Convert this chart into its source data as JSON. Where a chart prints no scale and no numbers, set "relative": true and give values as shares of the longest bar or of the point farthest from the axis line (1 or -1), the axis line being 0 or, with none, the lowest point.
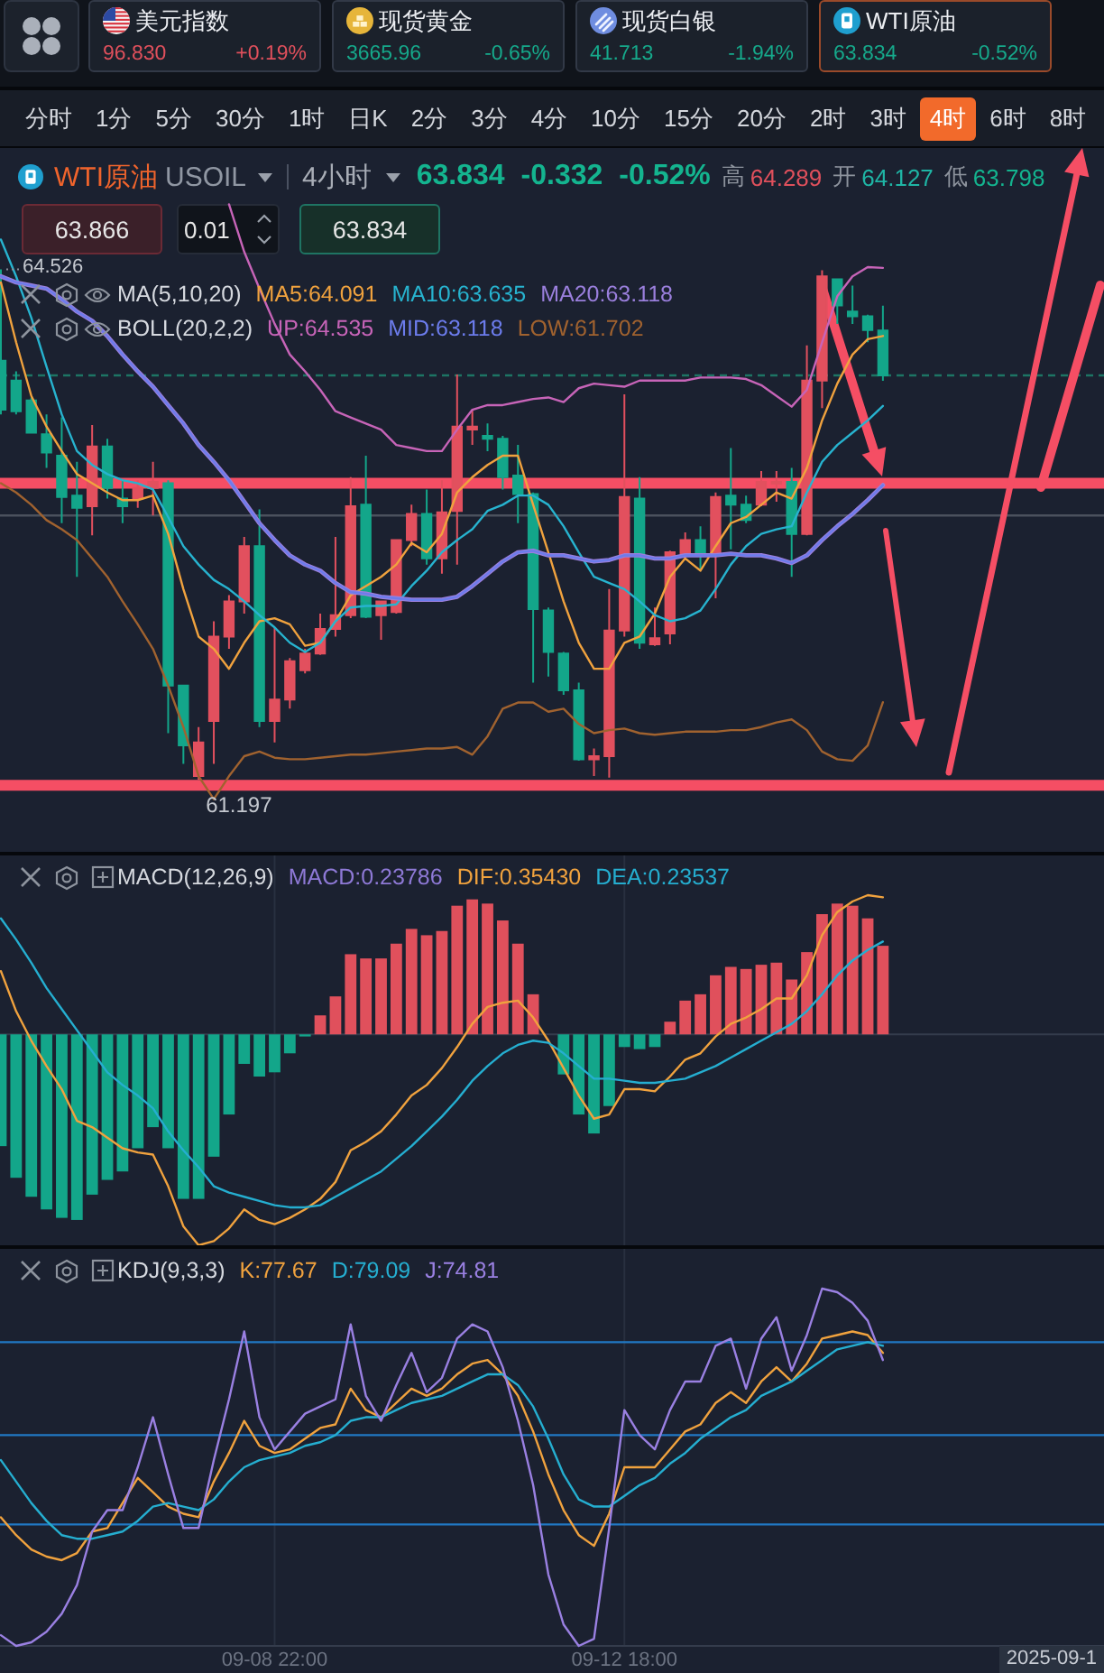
{
  "chart_data": [
    {
      "type": "other",
      "annotations": [
        "美元指数",
        "96.830",
        "+0.19%",
        "现货黄金",
        "3665.96",
        "-0.65%",
        "现货白银",
        "41.713",
        "-1.94%",
        "WTI原油",
        "63.834",
        "-0.52%"
      ]
    },
    {
      "type": "other",
      "annotations": [
        "分时",
        "1分",
        "5分",
        "30分",
        "1时",
        "日K",
        "2分",
        "3分",
        "4分",
        "10分",
        "15分",
        "20分",
        "2时",
        "3时",
        "4时",
        "6时",
        "8时"
      ]
    },
    {
      "type": "candlestick",
      "title": "WTI原油",
      "subtitle": "USOIL",
      "categories": [
        null,
        null,
        null,
        null,
        null,
        null,
        null,
        null,
        null,
        null,
        null,
        null,
        null,
        null,
        null,
        null,
        null,
        null,
        null,
        null,
        null,
        null,
        null,
        null,
        null,
        null,
        null,
        null,
        null,
        null,
        null,
        null,
        null,
        null,
        null,
        null,
        null,
        null,
        null,
        null,
        null,
        null,
        null,
        null,
        null,
        null,
        null,
        null,
        null,
        null,
        null,
        null,
        null,
        null,
        null,
        null,
        null,
        null,
        null
      ],
      "ohlc": [
        [
          63.93,
          64.526,
          63.58,
          63.61
        ],
        [
          63.8,
          63.86,
          63.58,
          63.6
        ],
        [
          63.67,
          63.69,
          63.46,
          63.46
        ],
        [
          63.45,
          63.58,
          63.23,
          63.33
        ],
        [
          63.31,
          63.56,
          62.87,
          63.04
        ],
        [
          63.05,
          63.27,
          62.52,
          62.97
        ],
        [
          62.98,
          63.51,
          62.79,
          63.37
        ],
        [
          63.37,
          63.42,
          63.03,
          63.1
        ],
        [
          63.03,
          63.15,
          62.87,
          62.98
        ],
        [
          63.03,
          63.15,
          62.97,
          63.1
        ],
        [
          63.1,
          63.27,
          62.92,
          63.14
        ],
        [
          63.13,
          63.15,
          61.5,
          61.81
        ],
        [
          61.81,
          61.81,
          61.3,
          61.42
        ],
        [
          61.22,
          61.54,
          61.197,
          61.44
        ],
        [
          61.58,
          62.23,
          61.3,
          62.13
        ],
        [
          62.13,
          62.4,
          62.05,
          62.36
        ],
        [
          62.36,
          62.78,
          62.28,
          62.72
        ],
        [
          62.72,
          62.96,
          61.54,
          61.58
        ],
        [
          61.58,
          62.19,
          61.44,
          61.72
        ],
        [
          61.72,
          61.99,
          61.66,
          61.97
        ],
        [
          61.91,
          62.05,
          61.89,
          62.02
        ],
        [
          62.02,
          62.28,
          62.01,
          62.18
        ],
        [
          62.18,
          62.78,
          62.13,
          62.27
        ],
        [
          62.27,
          63.17,
          62.25,
          62.98
        ],
        [
          62.99,
          63.31,
          62.25,
          62.26
        ],
        [
          62.27,
          62.36,
          62.11,
          62.36
        ],
        [
          62.29,
          62.76,
          62.28,
          62.76
        ],
        [
          62.76,
          62.99,
          62.72,
          62.93
        ],
        [
          62.93,
          63.09,
          62.6,
          62.64
        ],
        [
          62.64,
          63.15,
          62.54,
          62.94
        ],
        [
          62.95,
          63.84,
          62.6,
          63.5
        ],
        [
          63.48,
          63.61,
          63.38,
          63.5
        ],
        [
          63.44,
          63.52,
          63.34,
          63.42
        ],
        [
          63.42,
          63.44,
          63.09,
          63.17
        ],
        [
          63.18,
          63.38,
          62.87,
          63.06
        ],
        [
          63.06,
          63.07,
          61.83,
          62.31
        ],
        [
          62.3,
          62.32,
          61.87,
          62.03
        ],
        [
          62.02,
          62.03,
          61.75,
          61.78
        ],
        [
          61.78,
          61.83,
          61.32,
          61.33
        ],
        [
          61.33,
          61.4,
          61.22,
          61.35
        ],
        [
          61.35,
          62.44,
          61.21,
          62.17
        ],
        [
          62.17,
          63.71,
          62.13,
          63.04
        ],
        [
          63.03,
          63.17,
          62.05,
          62.09
        ],
        [
          62.08,
          62.32,
          62.07,
          62.12
        ],
        [
          62.15,
          62.69,
          62.08,
          62.68
        ],
        [
          62.67,
          62.81,
          62.64,
          62.76
        ],
        [
          62.76,
          62.85,
          62.56,
          62.66
        ],
        [
          62.66,
          63.07,
          62.38,
          63.04
        ],
        [
          63.05,
          63.36,
          62.7,
          62.99
        ],
        [
          62.99,
          63.05,
          62.87,
          62.89
        ],
        [
          62.99,
          63.21,
          62.98,
          63.14
        ],
        [
          63.13,
          63.21,
          63.01,
          63.14
        ],
        [
          63.14,
          63.23,
          62.52,
          62.8
        ],
        [
          62.8,
          64.03,
          62.79,
          63.8
        ],
        [
          63.8,
          64.52,
          63.62,
          64.48
        ],
        [
          64.46,
          64.46,
          64.17,
          64.29
        ],
        [
          64.25,
          64.42,
          64.17,
          64.22
        ],
        [
          64.22,
          64.23,
          64.05,
          64.13
        ],
        [
          64.127,
          64.289,
          63.798,
          63.834
        ]
      ],
      "colors": [
        "#13a68a",
        "#13a68a",
        "#13a68a",
        "#13a68a",
        "#13a68a",
        "#13a68a",
        "#e2505e",
        "#13a68a",
        "#13a68a",
        "#e2505e",
        "#e2505e",
        "#13a68a",
        "#13a68a",
        "#e2505e",
        "#e2505e",
        "#e2505e",
        "#e2505e",
        "#13a68a",
        "#e2505e",
        "#e2505e",
        "#e2505e",
        "#e2505e",
        "#e2505e",
        "#e2505e",
        "#13a68a",
        "#e2505e",
        "#e2505e",
        "#e2505e",
        "#13a68a",
        "#e2505e",
        "#e2505e",
        "#e2505e",
        "#13a68a",
        "#13a68a",
        "#13a68a",
        "#13a68a",
        "#13a68a",
        "#13a68a",
        "#13a68a",
        "#e2505e",
        "#e2505e",
        "#e2505e",
        "#13a68a",
        "#e2505e",
        "#e2505e",
        "#e2505e",
        "#13a68a",
        "#e2505e",
        "#13a68a",
        "#13a68a",
        "#e2505e",
        "#e2505e",
        "#13a68a",
        "#e2505e",
        "#e2505e",
        "#13a68a",
        "#13a68a",
        "#13a68a",
        "#13a68a"
      ],
      "series": [
        {
          "type": "line",
          "name": "MA5:64.091",
          "color": "#f0a23e",
          "values": [
            64.44,
            64.05,
            63.7,
            63.5,
            63.34,
            63.19,
            63.13,
            63.07,
            63.02,
            63.02,
            63.05,
            62.8,
            62.44,
            62.13,
            62.05,
            61.92,
            62.09,
            62.23,
            62.25,
            62.21,
            62.07,
            62.09,
            62.23,
            62.4,
            62.46,
            62.52,
            62.6,
            62.74,
            62.68,
            62.8,
            63.07,
            63.17,
            63.25,
            63.31,
            63.31,
            62.99,
            62.68,
            62.36,
            62.09,
            61.92,
            61.92,
            62.09,
            62.13,
            62.28,
            62.52,
            62.64,
            62.56,
            62.72,
            62.87,
            62.91,
            62.99,
            63.07,
            63.03,
            63.23,
            63.54,
            63.78,
            63.97,
            64.07,
            64.091
          ]
        },
        {
          "type": "line",
          "name": "MA10:63.635",
          "color": "#27b3cf",
          "values": [
            64.72,
            64.48,
            64.21,
            63.89,
            63.58,
            63.34,
            63.25,
            63.19,
            63.15,
            63.13,
            63.09,
            62.91,
            62.72,
            62.6,
            62.5,
            62.44,
            62.36,
            62.27,
            62.19,
            62.09,
            62.03,
            62.09,
            62.23,
            62.32,
            62.33,
            62.33,
            62.34,
            62.46,
            62.56,
            62.68,
            62.76,
            62.83,
            62.95,
            62.99,
            63.05,
            63.05,
            62.99,
            62.85,
            62.68,
            62.52,
            62.48,
            62.44,
            62.36,
            62.27,
            62.23,
            62.25,
            62.3,
            62.44,
            62.6,
            62.72,
            62.8,
            62.83,
            62.85,
            63.07,
            63.27,
            63.38,
            63.46,
            63.54,
            63.635
          ]
        },
        {
          "type": "line",
          "name": "MA20:63.118",
          "color": "#9a7fdc",
          "values": [
            64.48,
            64.44,
            64.42,
            64.4,
            64.33,
            64.25,
            64.19,
            64.09,
            63.97,
            63.86,
            63.76,
            63.64,
            63.52,
            63.38,
            63.27,
            63.15,
            63.01,
            62.87,
            62.76,
            62.66,
            62.6,
            62.56,
            62.48,
            62.42,
            62.41,
            62.39,
            62.38,
            62.37,
            62.37,
            62.37,
            62.39,
            62.46,
            62.54,
            62.62,
            62.68,
            62.69,
            62.66,
            62.66,
            62.64,
            62.62,
            62.63,
            62.66,
            62.66,
            62.64,
            62.64,
            62.66,
            62.66,
            62.66,
            62.67,
            62.66,
            62.66,
            62.64,
            62.61,
            62.66,
            62.76,
            62.85,
            62.93,
            63.02,
            63.118
          ]
        },
        {
          "type": "line",
          "name": "UP:64.535",
          "color": "#c764b8",
          "values": [
            null,
            null,
            null,
            null,
            null,
            null,
            null,
            null,
            null,
            null,
            null,
            null,
            null,
            null,
            null,
            64.95,
            64.64,
            64.4,
            64.17,
            63.97,
            63.86,
            63.74,
            63.6,
            63.56,
            63.52,
            63.48,
            63.38,
            63.36,
            63.34,
            63.34,
            63.48,
            63.61,
            63.64,
            63.64,
            63.66,
            63.68,
            63.69,
            63.66,
            63.75,
            63.78,
            63.77,
            63.76,
            63.8,
            63.8,
            63.8,
            63.8,
            63.82,
            63.82,
            63.82,
            63.81,
            63.77,
            63.7,
            63.63,
            63.74,
            64.05,
            64.35,
            64.48,
            64.54,
            64.535
          ]
        },
        {
          "type": "line",
          "name": "MID:63.118",
          "color": "#6c7cec",
          "values": [
            64.48,
            64.44,
            64.42,
            64.4,
            64.33,
            64.25,
            64.19,
            64.09,
            63.97,
            63.86,
            63.76,
            63.64,
            63.52,
            63.38,
            63.27,
            63.15,
            63.01,
            62.87,
            62.76,
            62.66,
            62.6,
            62.56,
            62.48,
            62.42,
            62.41,
            62.39,
            62.38,
            62.37,
            62.37,
            62.37,
            62.39,
            62.46,
            62.54,
            62.62,
            62.68,
            62.69,
            62.66,
            62.66,
            62.64,
            62.62,
            62.63,
            62.66,
            62.66,
            62.64,
            62.64,
            62.66,
            62.66,
            62.66,
            62.67,
            62.66,
            62.66,
            62.64,
            62.61,
            62.66,
            62.76,
            62.85,
            62.93,
            63.02,
            63.118
          ]
        },
        {
          "type": "line",
          "name": "LOW:61.702",
          "color": "#a0622f",
          "values": [
            63.13,
            63.07,
            62.99,
            62.89,
            62.83,
            62.76,
            62.64,
            62.52,
            62.36,
            62.21,
            62.05,
            61.81,
            61.54,
            61.22,
            61.07,
            61.22,
            61.35,
            61.38,
            61.34,
            61.33,
            61.33,
            61.34,
            61.35,
            61.36,
            61.36,
            61.37,
            61.38,
            61.39,
            61.4,
            61.4,
            61.41,
            61.36,
            61.48,
            61.66,
            61.7,
            61.7,
            61.64,
            61.66,
            61.56,
            61.5,
            61.52,
            61.53,
            61.5,
            61.49,
            61.5,
            61.51,
            61.51,
            61.51,
            61.52,
            61.52,
            61.54,
            61.57,
            61.59,
            61.52,
            61.38,
            61.33,
            61.32,
            61.42,
            61.702
          ]
        }
      ],
      "annotations": [
        "4小时",
        "63.834",
        "-0.332",
        "-0.52%",
        "高",
        "64.289",
        "开",
        "64.127",
        "低",
        "63.798",
        "63.866",
        "0.01",
        "63.834",
        "MA(5,10,20)",
        "BOLL(20,2,2)",
        "64.526",
        "61.197"
      ],
      "ref_lines": [
        {
          "axis": "y",
          "value": 63.834,
          "color": "#1d7564",
          "line_style": "dashed"
        },
        {
          "axis": "y",
          "value": 62.92,
          "color": "#4b515d",
          "line_style": "solid"
        },
        {
          "axis": "y",
          "value": 63.13,
          "color": "#f54e64"
        },
        {
          "axis": "y",
          "value": 61.16,
          "color": "#f54e64"
        }
      ],
      "legend": "top left",
      "tick_labels": false
    },
    {
      "type": "bar",
      "legend_title": "MACD(12,26,9)",
      "relative": true,
      "categories": [
        null,
        null,
        null,
        null,
        null,
        null,
        null,
        null,
        null,
        null,
        null,
        null,
        null,
        null,
        null,
        null,
        null,
        null,
        null,
        null,
        null,
        null,
        null,
        null,
        null,
        null,
        null,
        null,
        null,
        null,
        null,
        null,
        null,
        null,
        null,
        null,
        null,
        null,
        null,
        null,
        null,
        null,
        null,
        null,
        null,
        null,
        null,
        null,
        null,
        null,
        null,
        null,
        null,
        null,
        null,
        null,
        null,
        null,
        null
      ],
      "series": [
        {
          "name": "MACD:0.23786",
          "color": "#8e79d6",
          "colors": [
            "#13a68a",
            "#13a68a",
            "#13a68a",
            "#13a68a",
            "#13a68a",
            "#13a68a",
            "#13a68a",
            "#13a68a",
            "#13a68a",
            "#13a68a",
            "#13a68a",
            "#13a68a",
            "#13a68a",
            "#13a68a",
            "#13a68a",
            "#13a68a",
            "#13a68a",
            "#13a68a",
            "#13a68a",
            "#13a68a",
            "#13a68a",
            "#e0505c",
            "#e0505c",
            "#e0505c",
            "#e0505c",
            "#e0505c",
            "#e0505c",
            "#e0505c",
            "#e0505c",
            "#e0505c",
            "#e0505c",
            "#e0505c",
            "#e0505c",
            "#e0505c",
            "#e0505c",
            "#e0505c",
            null,
            "#13a68a",
            "#13a68a",
            "#13a68a",
            "#13a68a",
            "#13a68a",
            "#13a68a",
            "#13a68a",
            "#e0505c",
            "#e0505c",
            "#e0505c",
            "#e0505c",
            "#e0505c",
            "#e0505c",
            "#e0505c",
            "#e0505c",
            "#e0505c",
            "#e0505c",
            "#e0505c",
            "#e0505c",
            "#e0505c",
            "#e0505c",
            "#e0505c"
          ],
          "values": [
            -0.53,
            -0.68,
            -0.77,
            -0.83,
            -0.87,
            -0.88,
            -0.76,
            -0.69,
            -0.65,
            -0.54,
            -0.44,
            -0.54,
            -0.78,
            -0.78,
            -0.58,
            -0.38,
            -0.14,
            -0.2,
            -0.18,
            -0.09,
            -0.01,
            0.09,
            0.18,
            0.38,
            0.36,
            0.36,
            0.43,
            0.5,
            0.47,
            0.49,
            0.61,
            0.64,
            0.62,
            0.54,
            0.43,
            0.19,
            null,
            -0.19,
            -0.38,
            -0.47,
            -0.34,
            -0.06,
            -0.07,
            -0.06,
            0.06,
            0.16,
            0.19,
            0.28,
            0.32,
            0.31,
            0.33,
            0.34,
            0.26,
            0.39,
            0.57,
            0.62,
            0.61,
            0.55,
            0.42
          ]
        },
        {
          "type": "line",
          "name": "DIF:0.35430",
          "color": "#f0a23e",
          "values": [
            0.3,
            0.11,
            -0.03,
            -0.15,
            -0.26,
            -0.41,
            -0.44,
            -0.49,
            -0.54,
            -0.56,
            -0.57,
            -0.72,
            -0.91,
            -1,
            -0.98,
            -0.92,
            -0.83,
            -0.88,
            -0.9,
            -0.87,
            -0.83,
            -0.78,
            -0.7,
            -0.55,
            -0.51,
            -0.46,
            -0.38,
            -0.29,
            -0.24,
            -0.16,
            -0.06,
            0.05,
            0.13,
            0.15,
            0.16,
            0.08,
            -0.03,
            -0.16,
            -0.29,
            -0.4,
            -0.38,
            -0.26,
            -0.26,
            -0.27,
            -0.2,
            -0.12,
            -0.09,
            -0.01,
            0.05,
            0.08,
            0.12,
            0.17,
            0.17,
            0.28,
            0.47,
            0.58,
            0.63,
            0.66,
            0.65
          ]
        },
        {
          "type": "line",
          "name": "DEA:0.23537",
          "color": "#25aed0",
          "values": [
            0.55,
            0.45,
            0.34,
            0.22,
            0.12,
            0.02,
            -0.08,
            -0.18,
            -0.24,
            -0.29,
            -0.35,
            -0.46,
            -0.55,
            -0.63,
            -0.72,
            -0.75,
            -0.77,
            -0.79,
            -0.81,
            -0.82,
            -0.82,
            -0.81,
            -0.77,
            -0.73,
            -0.69,
            -0.65,
            -0.59,
            -0.53,
            -0.46,
            -0.39,
            -0.31,
            -0.22,
            -0.15,
            -0.09,
            -0.05,
            -0.03,
            -0.04,
            -0.09,
            -0.15,
            -0.21,
            -0.21,
            -0.22,
            -0.23,
            -0.23,
            -0.22,
            -0.21,
            -0.18,
            -0.15,
            -0.11,
            -0.07,
            -0.03,
            0.01,
            0.05,
            0.11,
            0.19,
            0.28,
            0.35,
            0.4,
            0.44
          ]
        }
      ],
      "grid": "x",
      "legend": "top",
      "tick_labels": false
    },
    {
      "type": "line",
      "legend_title": "KDJ(9,3,3)",
      "relative": true,
      "categories": [
        null,
        null,
        null,
        null,
        null,
        null,
        null,
        null,
        null,
        null,
        null,
        null,
        null,
        null,
        null,
        null,
        null,
        null,
        "09-08 22:00",
        null,
        null,
        null,
        null,
        null,
        null,
        null,
        null,
        null,
        null,
        null,
        null,
        null,
        null,
        null,
        null,
        null,
        null,
        null,
        null,
        null,
        null,
        "09-12 18:00",
        null,
        null,
        null,
        null,
        null,
        null,
        null,
        null,
        null,
        null,
        null,
        null,
        null,
        null,
        null,
        null,
        null
      ],
      "series": [
        {
          "name": "K:77.67",
          "color": "#f0a23e",
          "values": [
            0.36,
            0.31,
            0.27,
            0.25,
            0.24,
            0.26,
            0.32,
            0.33,
            0.4,
            0.47,
            0.43,
            0.39,
            0.37,
            0.36,
            0.46,
            0.54,
            0.63,
            0.56,
            0.54,
            0.55,
            0.58,
            0.61,
            0.62,
            0.72,
            0.66,
            0.64,
            0.68,
            0.72,
            0.7,
            0.72,
            0.76,
            0.79,
            0.8,
            0.76,
            0.7,
            0.6,
            0.48,
            0.38,
            0.31,
            0.28,
            0.37,
            0.5,
            0.5,
            0.5,
            0.55,
            0.6,
            0.62,
            0.68,
            0.71,
            0.68,
            0.74,
            0.78,
            0.74,
            0.79,
            0.86,
            0.87,
            0.88,
            0.87,
            0.82
          ]
        },
        {
          "name": "D:79.09",
          "color": "#25aed0",
          "values": [
            0.52,
            0.46,
            0.4,
            0.35,
            0.31,
            0.3,
            0.3,
            0.31,
            0.32,
            0.35,
            0.39,
            0.4,
            0.39,
            0.38,
            0.41,
            0.46,
            0.5,
            0.52,
            0.53,
            0.54,
            0.56,
            0.57,
            0.59,
            0.63,
            0.64,
            0.64,
            0.66,
            0.68,
            0.69,
            0.7,
            0.72,
            0.74,
            0.76,
            0.76,
            0.73,
            0.67,
            0.58,
            0.48,
            0.41,
            0.39,
            0.39,
            0.42,
            0.45,
            0.47,
            0.51,
            0.54,
            0.58,
            0.61,
            0.64,
            0.66,
            0.7,
            0.72,
            0.74,
            0.77,
            0.8,
            0.83,
            0.84,
            0.85,
            0.84
          ]
        },
        {
          "name": "J:74.81",
          "color": "#9a80e2",
          "values": [
            0.03,
            0,
            0.01,
            0.04,
            0.09,
            0.17,
            0.32,
            0.38,
            0.38,
            0.5,
            0.64,
            0.48,
            0.33,
            0.33,
            0.52,
            0.69,
            0.88,
            0.64,
            0.55,
            0.6,
            0.65,
            0.67,
            0.69,
            0.9,
            0.7,
            0.63,
            0.73,
            0.82,
            0.71,
            0.75,
            0.86,
            0.9,
            0.88,
            0.78,
            0.63,
            0.45,
            0.2,
            0.06,
            0,
            0.02,
            0.33,
            0.66,
            0.59,
            0.55,
            0.66,
            0.74,
            0.74,
            0.84,
            0.86,
            0.72,
            0.86,
            0.92,
            0.77,
            0.87,
            1,
            0.99,
            0.96,
            0.91,
            0.8
          ]
        }
      ],
      "ref_lines": [
        {
          "axis": "y",
          "value": 0.85,
          "color": "#2178c4",
          "line_style": "solid"
        },
        {
          "axis": "y",
          "value": 0.59,
          "color": "#2178c4",
          "line_style": "solid"
        },
        {
          "axis": "y",
          "value": 0.34,
          "color": "#2178c4",
          "line_style": "solid"
        }
      ],
      "annotations": [
        "2025-09-1"
      ],
      "grid": "x",
      "legend": "top left",
      "tick_labels": "x"
    }
  ]
}
